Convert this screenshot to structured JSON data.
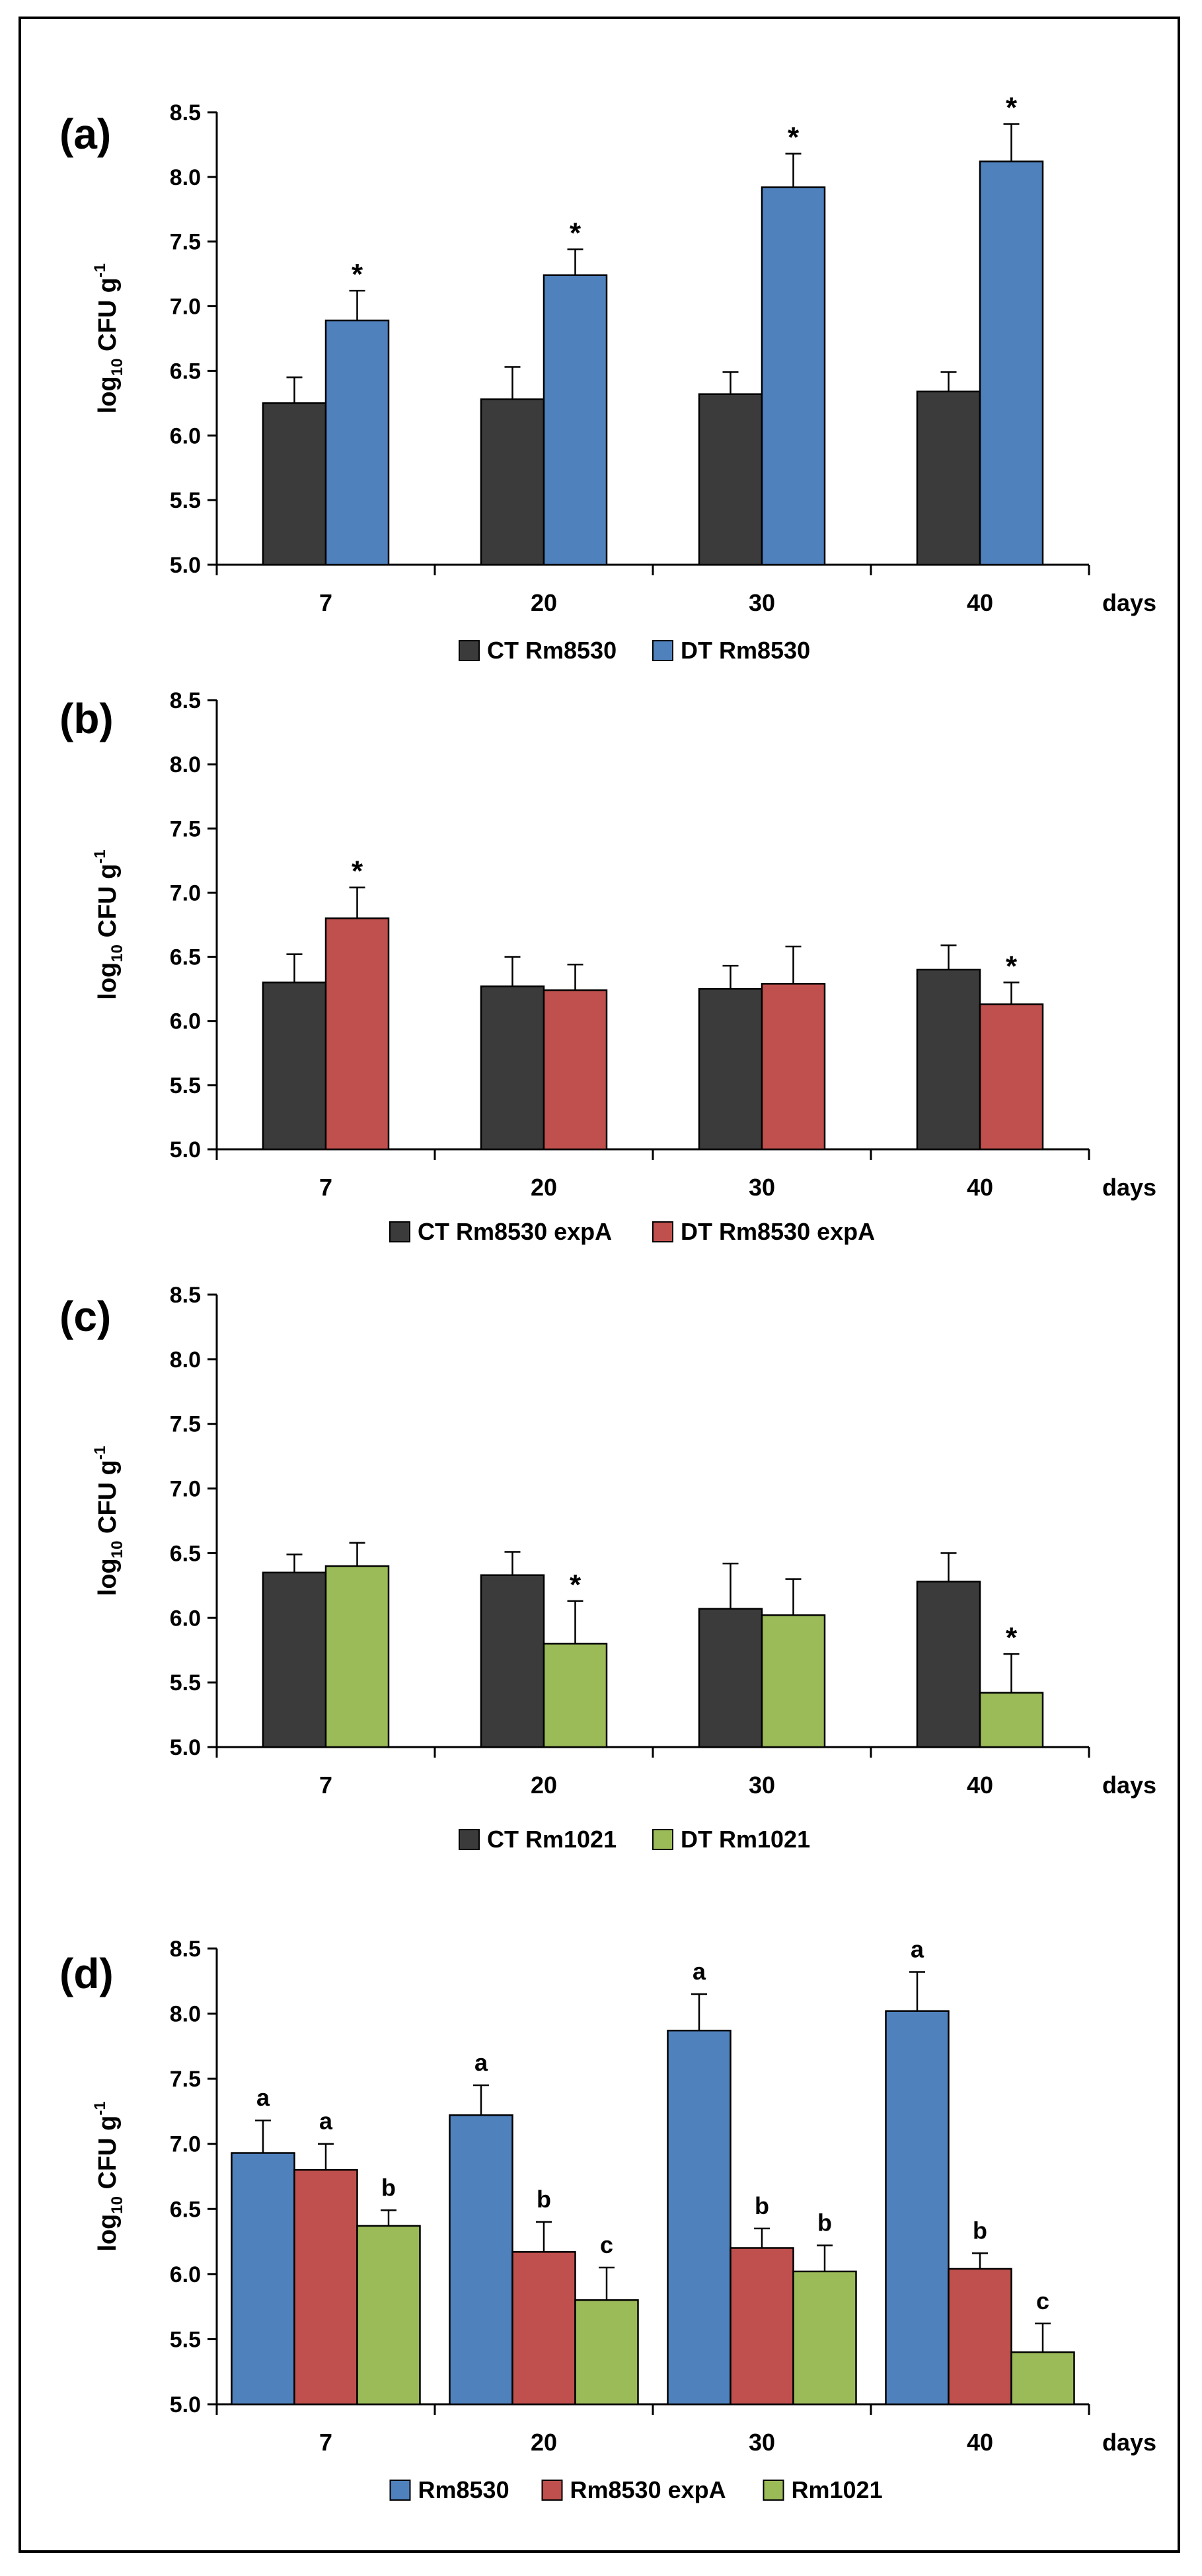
{
  "colors": {
    "ct": "#3b3b3b",
    "rm8530": "#4f81bd",
    "rm8530_expA": "#c0504d",
    "rm1021": "#9bbb59"
  },
  "chart_data": [
    {
      "type": "bar",
      "panel_label": "(a)",
      "categories": [
        "7",
        "20",
        "30",
        "40"
      ],
      "x_unit_label": "days",
      "ylabel_base": "log",
      "ylabel_sub": "10",
      "ylabel_main": " CFU g",
      "ylabel_sup": "-1",
      "ylim": [
        5.0,
        8.5
      ],
      "yticks": [
        "5.0",
        "5.5",
        "6.0",
        "6.5",
        "7.0",
        "7.5",
        "8.0",
        "8.5"
      ],
      "legend_position": "bottom-center",
      "series": [
        {
          "name": "CT Rm8530",
          "color": "#3b3b3b",
          "values": [
            6.25,
            6.28,
            6.32,
            6.34
          ],
          "errors": [
            0.2,
            0.25,
            0.17,
            0.15
          ],
          "annotations": [
            "",
            "",
            "",
            ""
          ]
        },
        {
          "name": "DT Rm8530",
          "color": "#4f81bd",
          "values": [
            6.89,
            7.24,
            7.92,
            8.12
          ],
          "errors": [
            0.23,
            0.2,
            0.26,
            0.29
          ],
          "annotations": [
            "*",
            "*",
            "*",
            "*"
          ]
        }
      ]
    },
    {
      "type": "bar",
      "panel_label": "(b)",
      "categories": [
        "7",
        "20",
        "30",
        "40"
      ],
      "x_unit_label": "days",
      "ylabel_base": "log",
      "ylabel_sub": "10",
      "ylabel_main": " CFU g",
      "ylabel_sup": "-1",
      "ylim": [
        5.0,
        8.5
      ],
      "yticks": [
        "5.0",
        "5.5",
        "6.0",
        "6.5",
        "7.0",
        "7.5",
        "8.0",
        "8.5"
      ],
      "legend_position": "bottom-center",
      "series": [
        {
          "name": "CT Rm8530 expA",
          "color": "#3b3b3b",
          "values": [
            6.3,
            6.27,
            6.25,
            6.4
          ],
          "errors": [
            0.22,
            0.23,
            0.18,
            0.19
          ],
          "annotations": [
            "",
            "",
            "",
            ""
          ]
        },
        {
          "name": "DT Rm8530 expA",
          "color": "#c0504d",
          "values": [
            6.8,
            6.24,
            6.29,
            6.13
          ],
          "errors": [
            0.24,
            0.2,
            0.29,
            0.17
          ],
          "annotations": [
            "*",
            "",
            "",
            "*"
          ]
        }
      ]
    },
    {
      "type": "bar",
      "panel_label": "(c)",
      "categories": [
        "7",
        "20",
        "30",
        "40"
      ],
      "x_unit_label": "days",
      "ylabel_base": "log",
      "ylabel_sub": "10",
      "ylabel_main": " CFU g",
      "ylabel_sup": "-1",
      "ylim": [
        5.0,
        8.5
      ],
      "yticks": [
        "5.0",
        "5.5",
        "6.0",
        "6.5",
        "7.0",
        "7.5",
        "8.0",
        "8.5"
      ],
      "legend_position": "bottom-center",
      "series": [
        {
          "name": "CT Rm1021",
          "color": "#3b3b3b",
          "values": [
            6.35,
            6.33,
            6.07,
            6.28
          ],
          "errors": [
            0.14,
            0.18,
            0.35,
            0.22
          ],
          "annotations": [
            "",
            "",
            "",
            ""
          ]
        },
        {
          "name": "DT Rm1021",
          "color": "#9bbb59",
          "values": [
            6.4,
            5.8,
            6.02,
            5.42
          ],
          "errors": [
            0.18,
            0.33,
            0.28,
            0.3
          ],
          "annotations": [
            "",
            "*",
            "",
            "*"
          ]
        }
      ]
    },
    {
      "type": "bar",
      "panel_label": "(d)",
      "categories": [
        "7",
        "20",
        "30",
        "40"
      ],
      "x_unit_label": "days",
      "ylabel_base": "log",
      "ylabel_sub": "10",
      "ylabel_main": " CFU g",
      "ylabel_sup": "-1",
      "ylim": [
        5.0,
        8.5
      ],
      "yticks": [
        "5.0",
        "5.5",
        "6.0",
        "6.5",
        "7.0",
        "7.5",
        "8.0",
        "8.5"
      ],
      "legend_position": "bottom-center",
      "series": [
        {
          "name": "Rm8530",
          "color": "#4f81bd",
          "values": [
            6.93,
            7.22,
            7.87,
            8.02
          ],
          "errors": [
            0.25,
            0.23,
            0.28,
            0.3
          ],
          "annotations": [
            "a",
            "a",
            "a",
            "a"
          ]
        },
        {
          "name": "Rm8530 expA",
          "color": "#c0504d",
          "values": [
            6.8,
            6.17,
            6.2,
            6.04
          ],
          "errors": [
            0.2,
            0.23,
            0.15,
            0.12
          ],
          "annotations": [
            "a",
            "b",
            "b",
            "b"
          ]
        },
        {
          "name": "Rm1021",
          "color": "#9bbb59",
          "values": [
            6.37,
            5.8,
            6.02,
            5.4
          ],
          "errors": [
            0.12,
            0.25,
            0.2,
            0.22
          ],
          "annotations": [
            "b",
            "c",
            "b",
            "c"
          ]
        }
      ]
    }
  ]
}
